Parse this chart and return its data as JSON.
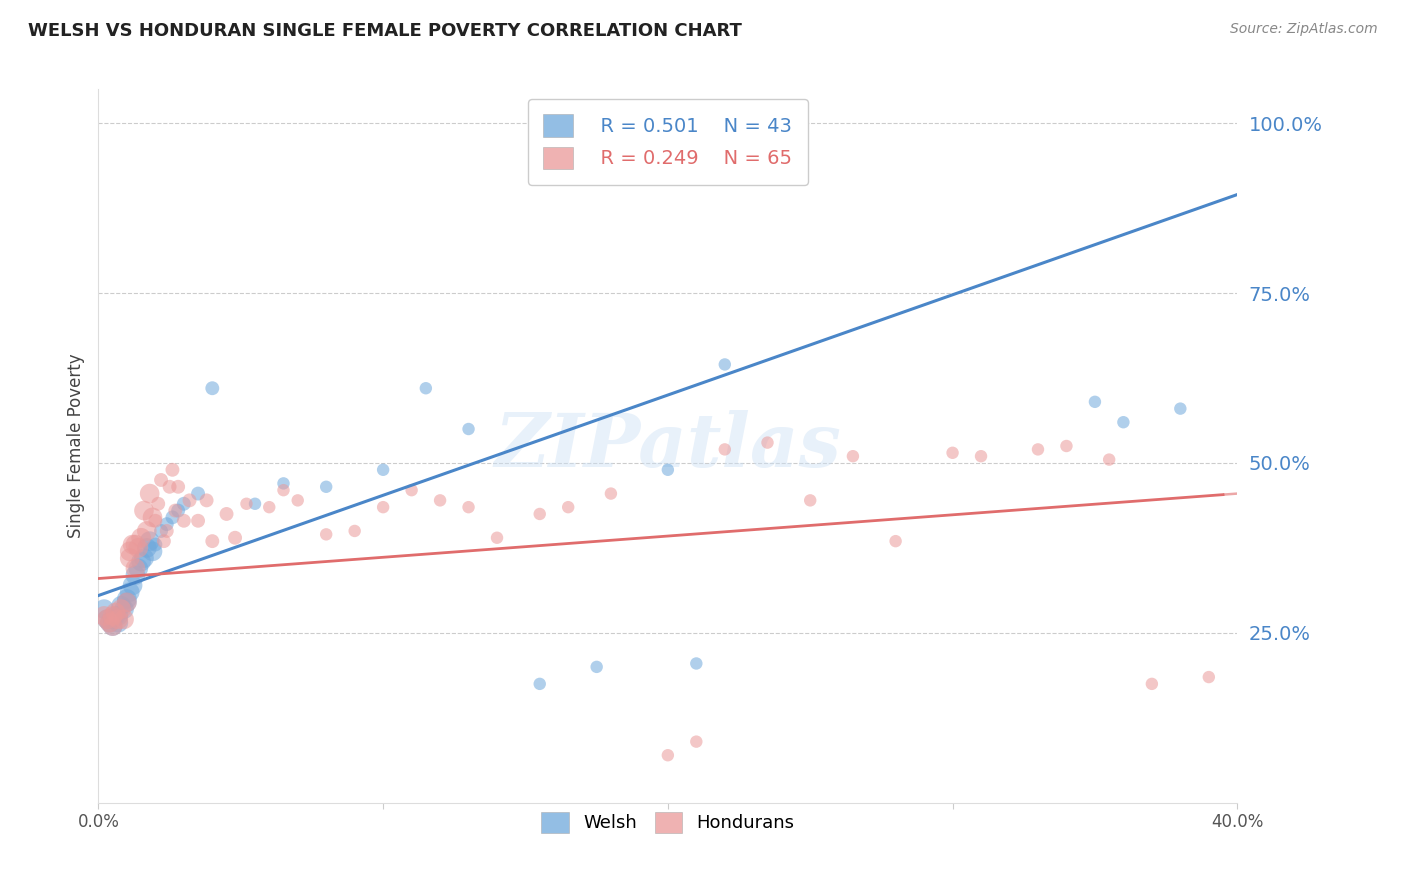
{
  "title": "WELSH VS HONDURAN SINGLE FEMALE POVERTY CORRELATION CHART",
  "source": "Source: ZipAtlas.com",
  "ylabel": "Single Female Poverty",
  "watermark": "ZIPatlas",
  "welsh_color": "#6fa8dc",
  "honduran_color": "#ea9999",
  "welsh_line_color": "#4a86c8",
  "honduran_line_color": "#e06c6c",
  "legend_welsh_R": "R = 0.501",
  "legend_welsh_N": "N = 43",
  "legend_honduran_R": "R = 0.249",
  "legend_honduran_N": "N = 65",
  "xmin": 0.0,
  "xmax": 0.4,
  "ymin": 0.0,
  "ymax": 1.05,
  "yticks": [
    0.25,
    0.5,
    0.75,
    1.0
  ],
  "ytick_labels": [
    "25.0%",
    "50.0%",
    "75.0%",
    "100.0%"
  ],
  "welsh_x": [
    0.002,
    0.003,
    0.004,
    0.005,
    0.005,
    0.006,
    0.007,
    0.007,
    0.008,
    0.009,
    0.01,
    0.01,
    0.011,
    0.012,
    0.013,
    0.014,
    0.015,
    0.016,
    0.017,
    0.018,
    0.019,
    0.02,
    0.022,
    0.024,
    0.026,
    0.028,
    0.03,
    0.035,
    0.04,
    0.055,
    0.065,
    0.08,
    0.1,
    0.115,
    0.13,
    0.155,
    0.175,
    0.2,
    0.21,
    0.22,
    0.35,
    0.36,
    0.38
  ],
  "welsh_y": [
    0.285,
    0.27,
    0.265,
    0.26,
    0.27,
    0.275,
    0.265,
    0.275,
    0.29,
    0.285,
    0.295,
    0.3,
    0.31,
    0.32,
    0.335,
    0.345,
    0.355,
    0.36,
    0.375,
    0.385,
    0.37,
    0.38,
    0.4,
    0.41,
    0.42,
    0.43,
    0.44,
    0.455,
    0.61,
    0.44,
    0.47,
    0.465,
    0.49,
    0.61,
    0.55,
    0.175,
    0.2,
    0.49,
    0.205,
    0.645,
    0.59,
    0.56,
    0.58
  ],
  "honduran_x": [
    0.002,
    0.003,
    0.004,
    0.005,
    0.005,
    0.006,
    0.007,
    0.008,
    0.009,
    0.01,
    0.011,
    0.011,
    0.012,
    0.013,
    0.013,
    0.014,
    0.015,
    0.016,
    0.017,
    0.018,
    0.019,
    0.02,
    0.021,
    0.022,
    0.023,
    0.024,
    0.025,
    0.026,
    0.027,
    0.028,
    0.03,
    0.032,
    0.035,
    0.038,
    0.04,
    0.045,
    0.048,
    0.052,
    0.06,
    0.065,
    0.07,
    0.08,
    0.09,
    0.1,
    0.11,
    0.12,
    0.13,
    0.14,
    0.155,
    0.165,
    0.18,
    0.2,
    0.21,
    0.22,
    0.235,
    0.25,
    0.265,
    0.28,
    0.3,
    0.31,
    0.33,
    0.34,
    0.355,
    0.37,
    0.39
  ],
  "honduran_y": [
    0.275,
    0.27,
    0.265,
    0.26,
    0.275,
    0.28,
    0.27,
    0.285,
    0.27,
    0.295,
    0.37,
    0.36,
    0.38,
    0.345,
    0.38,
    0.375,
    0.39,
    0.43,
    0.4,
    0.455,
    0.42,
    0.415,
    0.44,
    0.475,
    0.385,
    0.4,
    0.465,
    0.49,
    0.43,
    0.465,
    0.415,
    0.445,
    0.415,
    0.445,
    0.385,
    0.425,
    0.39,
    0.44,
    0.435,
    0.46,
    0.445,
    0.395,
    0.4,
    0.435,
    0.46,
    0.445,
    0.435,
    0.39,
    0.425,
    0.435,
    0.455,
    0.07,
    0.09,
    0.52,
    0.53,
    0.445,
    0.51,
    0.385,
    0.515,
    0.51,
    0.52,
    0.525,
    0.505,
    0.175,
    0.185
  ],
  "welsh_trend_x0": 0.0,
  "welsh_trend_y0": 0.305,
  "welsh_trend_x1": 0.4,
  "welsh_trend_y1": 0.895,
  "honduran_trend_x0": 0.0,
  "honduran_trend_y0": 0.33,
  "honduran_trend_x1": 0.4,
  "honduran_trend_y1": 0.455
}
